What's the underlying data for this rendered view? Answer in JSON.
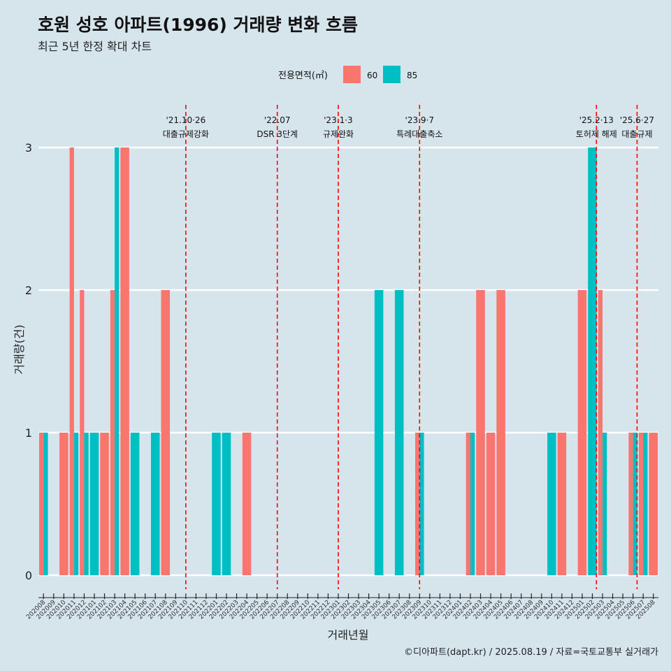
{
  "title": "호원 성호 아파트(1996) 거래량 변화 흐름",
  "subtitle": "최근 5년 한정 확대 차트",
  "caption": "©디아파트(dapt.kr) / 2025.08.19 / 자료=국토교통부 실거래가",
  "colors": {
    "s60": "#f8766d",
    "s85": "#00bfc4",
    "event_line": "#ff0000",
    "grid": "#ffffff",
    "background": "#d6e4ec"
  },
  "chart_data": {
    "type": "bar",
    "xlabel": "거래년월",
    "ylabel": "거래량(건)",
    "ylim": [
      0,
      3
    ],
    "yticks": [
      0,
      1,
      2,
      3
    ],
    "legend": {
      "title": "전용면적(㎡)",
      "position": "top"
    },
    "categories": [
      "202008",
      "202009",
      "202010",
      "202011",
      "202012",
      "202101",
      "202102",
      "202103",
      "202104",
      "202105",
      "202106",
      "202107",
      "202108",
      "202109",
      "202110",
      "202111",
      "202112",
      "202201",
      "202202",
      "202203",
      "202204",
      "202205",
      "202206",
      "202207",
      "202208",
      "202209",
      "202210",
      "202211",
      "202212",
      "202301",
      "202302",
      "202303",
      "202304",
      "202305",
      "202306",
      "202307",
      "202308",
      "202309",
      "202310",
      "202311",
      "202312",
      "202401",
      "202402",
      "202403",
      "202404",
      "202405",
      "202406",
      "202407",
      "202408",
      "202409",
      "202410",
      "202411",
      "202412",
      "202501",
      "202502",
      "202503",
      "202504",
      "202505",
      "202506",
      "202507",
      "202508"
    ],
    "series": [
      {
        "name": "60",
        "color": "#f8766d",
        "values": [
          1,
          0,
          1,
          3,
          2,
          0,
          1,
          2,
          3,
          0,
          0,
          0,
          2,
          0,
          0,
          0,
          0,
          0,
          0,
          0,
          1,
          0,
          0,
          0,
          0,
          0,
          0,
          0,
          0,
          0,
          0,
          0,
          0,
          0,
          0,
          0,
          0,
          1,
          0,
          0,
          0,
          0,
          1,
          2,
          1,
          2,
          0,
          0,
          0,
          0,
          0,
          1,
          0,
          2,
          0,
          2,
          0,
          0,
          1,
          1,
          1
        ]
      },
      {
        "name": "85",
        "color": "#00bfc4",
        "values": [
          1,
          0,
          0,
          1,
          1,
          1,
          0,
          3,
          0,
          1,
          0,
          1,
          0,
          0,
          0,
          0,
          0,
          1,
          1,
          0,
          0,
          0,
          0,
          0,
          0,
          0,
          0,
          0,
          0,
          0,
          0,
          0,
          0,
          2,
          0,
          2,
          0,
          1,
          0,
          0,
          0,
          0,
          1,
          0,
          0,
          0,
          0,
          0,
          0,
          0,
          1,
          0,
          0,
          0,
          3,
          1,
          0,
          0,
          1,
          1,
          0
        ]
      }
    ],
    "events": [
      {
        "pos": 14.0,
        "label1": "'21.10·26",
        "label2": "대출규제강화"
      },
      {
        "pos": 23.0,
        "label1": "'22.07",
        "label2": "DSR 3단계"
      },
      {
        "pos": 29.0,
        "label1": "'23.1·3",
        "label2": "규제완화"
      },
      {
        "pos": 37.0,
        "label1": "'23.9·7",
        "label2": "특례대출축소"
      },
      {
        "pos": 54.4,
        "label1": "'25.2·13",
        "label2": "토허제 해제"
      },
      {
        "pos": 58.4,
        "label1": "'25.6·27",
        "label2": "대출규제"
      }
    ]
  }
}
